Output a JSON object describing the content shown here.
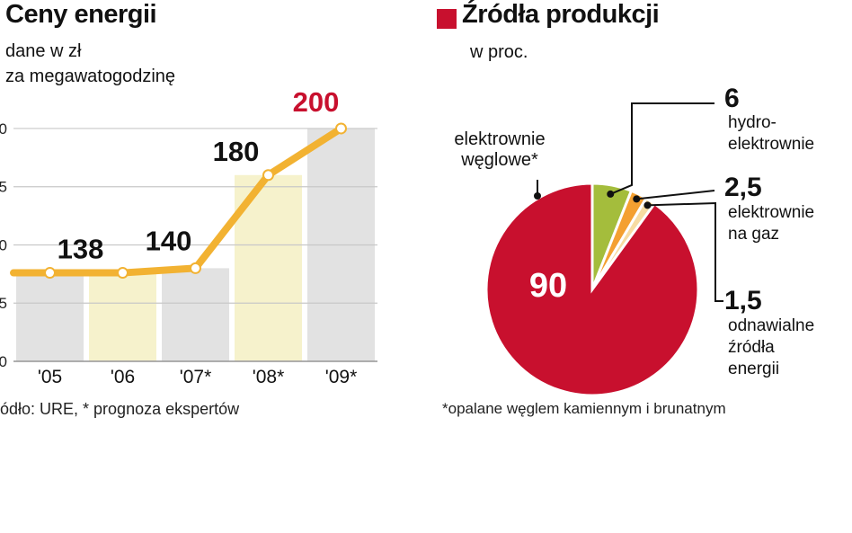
{
  "line_panel": {
    "title": "Ceny energii",
    "subtitle_line1": "dane w zł",
    "subtitle_line2": "za megawatogodzinę",
    "source": "ódło: URE, * prognoza ekspertów",
    "tick_fragments": [
      "0",
      "5",
      "0",
      "5",
      "0"
    ]
  },
  "pie_panel": {
    "title": "Źródła produkcji",
    "subtitle": "w proc.",
    "coal_label_line1": "elektrownie",
    "coal_label_line2": "węglowe*",
    "hydro_label_line1": "hydro-",
    "hydro_label_line2": "elektrownie",
    "gas_label_line1": "elektrownie",
    "gas_label_line2": "na gaz",
    "renew_label_line1": "odnawialne",
    "renew_label_line2": "źródła",
    "renew_label_line3": "energii",
    "footnote": "*opalane węglem kamiennym i brunatnym"
  },
  "colors": {
    "line": "#f2b232",
    "bar_gray": "#e2e2e2",
    "bar_cream": "#f6f2cc",
    "coal": "#c8102e",
    "hydro": "#a4bd3c",
    "gas": "#f4a031",
    "renew": "#f7dca2",
    "title_square": "#c8102e"
  },
  "chart_data": [
    {
      "type": "line",
      "title": "Ceny energii",
      "x": [
        "'05",
        "'06",
        "'07*",
        "'08*",
        "'09*"
      ],
      "series": [
        {
          "values": [
            138,
            138,
            140,
            180,
            200
          ]
        }
      ],
      "data_labels": [
        "138",
        "140",
        "180",
        "200"
      ],
      "ylim": [
        100,
        205
      ],
      "grid": true
    },
    {
      "type": "pie",
      "title": "Źródła produkcji",
      "categories": [
        "elektrownie węglowe*",
        "hydroelektrownie",
        "elektrownie na gaz",
        "odnawialne źródła energii"
      ],
      "values": [
        90,
        6,
        2.5,
        1.5
      ],
      "value_labels": [
        "90",
        "6",
        "2,5",
        "1,5"
      ]
    }
  ]
}
